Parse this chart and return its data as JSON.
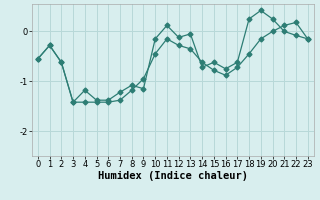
{
  "xlabel": "Humidex (Indice chaleur)",
  "line1_x": [
    0,
    1,
    2,
    3,
    4,
    5,
    6,
    7,
    8,
    9,
    10,
    11,
    12,
    13,
    14,
    15,
    16,
    17,
    18,
    19,
    20,
    21,
    22,
    23
  ],
  "line1_y": [
    -0.55,
    -0.28,
    -0.62,
    -1.42,
    -1.18,
    -1.38,
    -1.38,
    -1.22,
    -1.08,
    -1.15,
    -0.15,
    0.12,
    -0.12,
    -0.05,
    -0.72,
    -0.62,
    -0.75,
    -0.62,
    0.25,
    0.42,
    0.25,
    0.0,
    -0.08,
    -0.15
  ],
  "line2_x": [
    0,
    1,
    2,
    3,
    4,
    5,
    6,
    7,
    8,
    9,
    10,
    11,
    12,
    13,
    14,
    15,
    16,
    17,
    18,
    19,
    20,
    21,
    22,
    23
  ],
  "line2_y": [
    -0.55,
    -0.28,
    -0.62,
    -1.42,
    -1.42,
    -1.42,
    -1.42,
    -1.38,
    -1.18,
    -0.95,
    -0.45,
    -0.15,
    -0.28,
    -0.35,
    -0.62,
    -0.78,
    -0.88,
    -0.72,
    -0.45,
    -0.15,
    0.0,
    0.12,
    0.18,
    -0.15
  ],
  "line_color": "#2d7d74",
  "bg_color": "#d8eeee",
  "grid_color": "#b8d8d8",
  "ylim": [
    -2.5,
    0.55
  ],
  "xlim": [
    -0.5,
    23.5
  ],
  "yticks": [
    -2,
    -1,
    0
  ],
  "xticks": [
    0,
    1,
    2,
    3,
    4,
    5,
    6,
    7,
    8,
    9,
    10,
    11,
    12,
    13,
    14,
    15,
    16,
    17,
    18,
    19,
    20,
    21,
    22,
    23
  ],
  "marker": "D",
  "markersize": 2.5,
  "linewidth": 0.9,
  "xlabel_fontsize": 7.5,
  "tick_fontsize": 6
}
